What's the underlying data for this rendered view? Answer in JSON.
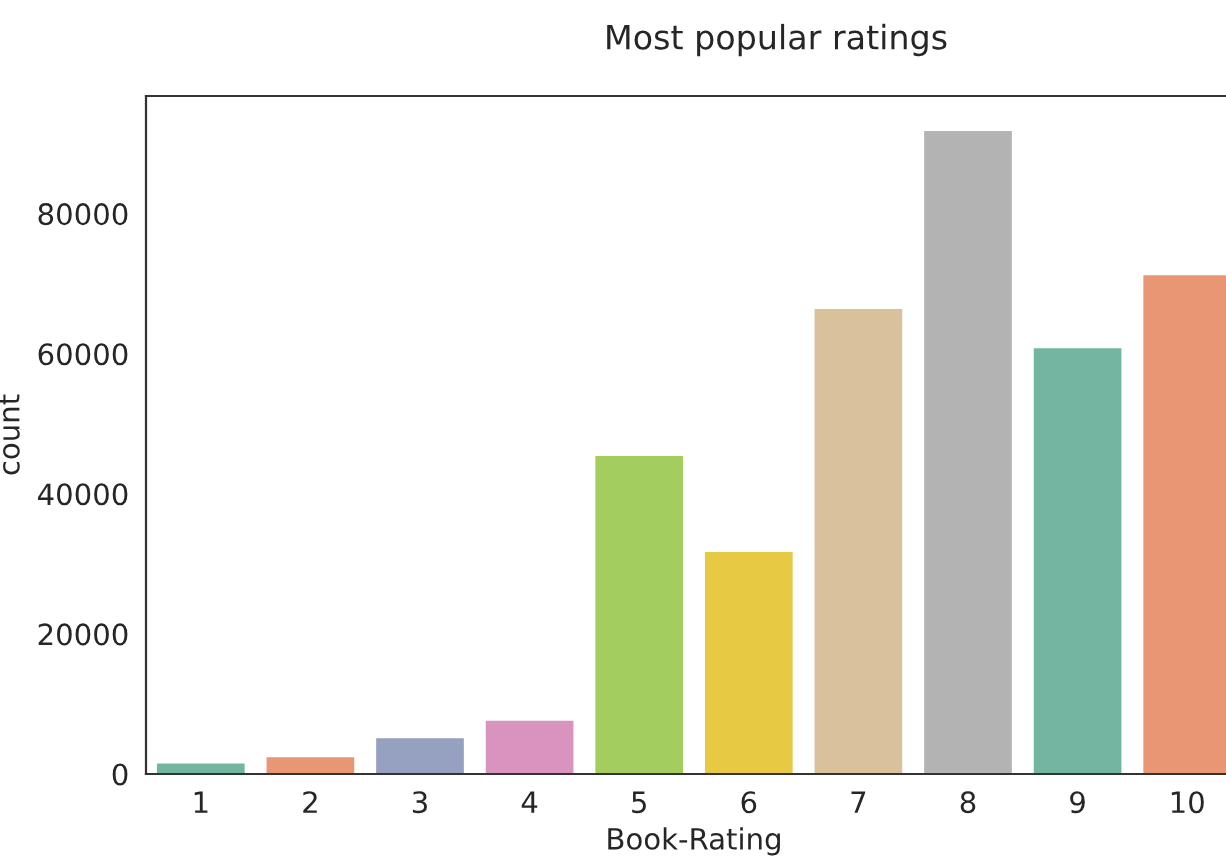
{
  "chart_data": {
    "type": "bar",
    "title": "Most popular ratings",
    "xlabel": "Book-Rating",
    "ylabel": "count",
    "categories": [
      "1",
      "2",
      "3",
      "4",
      "5",
      "6",
      "7",
      "8",
      "9",
      "10"
    ],
    "values": [
      1500,
      2400,
      5100,
      7600,
      45400,
      31700,
      66400,
      91800,
      60800,
      71200
    ],
    "colors": [
      "#72b6a1",
      "#e99675",
      "#96a0c1",
      "#d893be",
      "#a4cd60",
      "#e8c944",
      "#d9c19b",
      "#b3b3b3",
      "#72b6a1",
      "#e99675"
    ],
    "ylim": [
      0,
      96800
    ],
    "yticks": [
      0,
      20000,
      40000,
      60000,
      80000
    ],
    "grid": false
  }
}
